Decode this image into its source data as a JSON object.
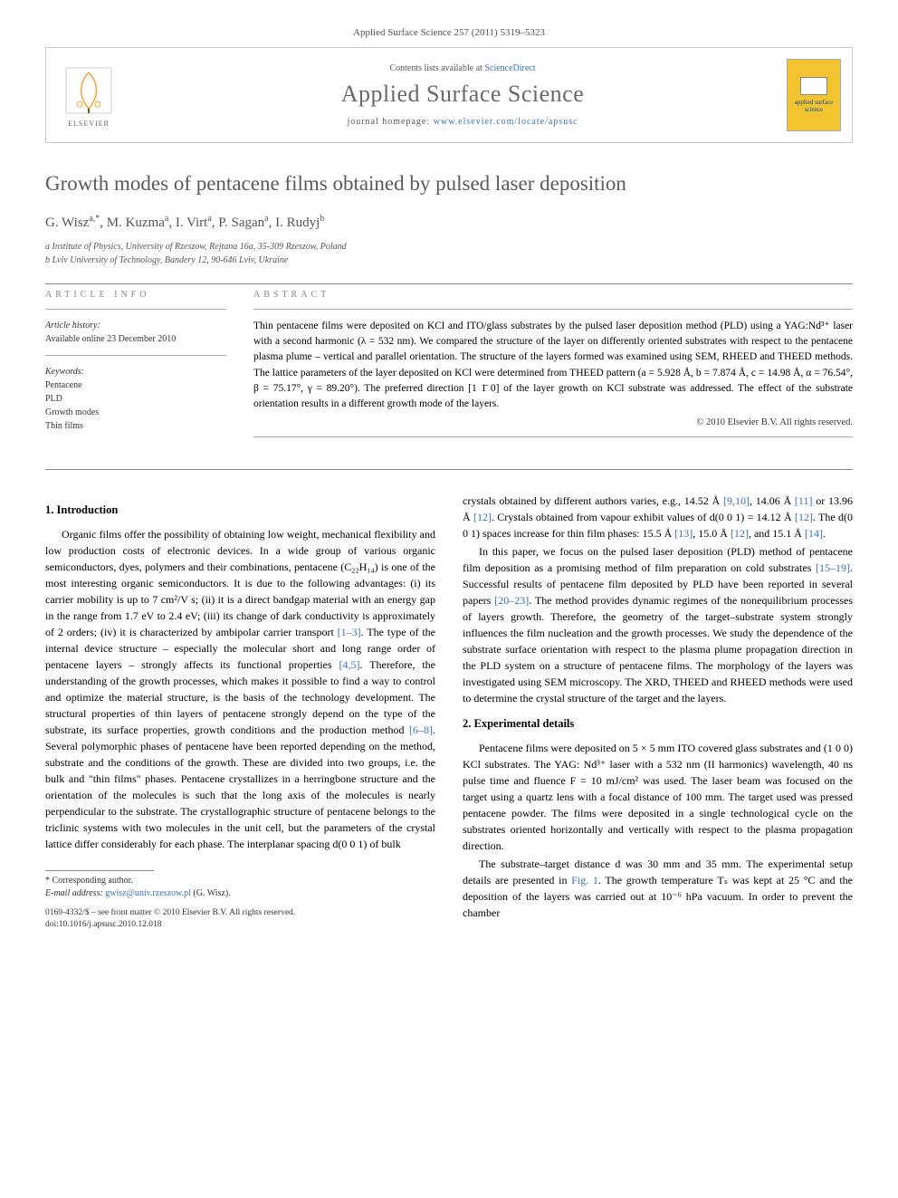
{
  "top_reference": "Applied Surface Science 257 (2011) 5319–5323",
  "banner": {
    "contents_prefix": "Contents lists available at ",
    "contents_link": "ScienceDirect",
    "journal_name": "Applied Surface Science",
    "homepage_prefix": "journal homepage: ",
    "homepage_url": "www.elsevier.com/locate/apsusc",
    "publisher_name": "ELSEVIER",
    "cover_label": "applied surface science"
  },
  "article": {
    "title": "Growth modes of pentacene films obtained by pulsed laser deposition",
    "authors_html": "G. Wisz<sup>a,*</sup>, M. Kuzma<sup>a</sup>, I. Virt<sup>a</sup>, P. Sagan<sup>a</sup>, I. Rudyj<sup>b</sup>",
    "affiliations": [
      "a Institute of Physics, University of Rzeszow, Rejtana 16a, 35-309 Rzeszow, Poland",
      "b Lviv University of Technology, Bandery 12, 90-646 Lviv, Ukraine"
    ]
  },
  "info": {
    "header": "ARTICLE INFO",
    "history_label": "Article history:",
    "history_value": "Available online 23 December 2010",
    "keywords_label": "Keywords:",
    "keywords": [
      "Pentacene",
      "PLD",
      "Growth modes",
      "Thin films"
    ]
  },
  "abstract": {
    "header": "ABSTRACT",
    "text": "Thin pentacene films were deposited on KCl and ITO/glass substrates by the pulsed laser deposition method (PLD) using a YAG:Nd³⁺ laser with a second harmonic (λ = 532 nm). We compared the structure of the layer on differently oriented substrates with respect to the pentacene plasma plume – vertical and parallel orientation. The structure of the layers formed was examined using SEM, RHEED and THEED methods. The lattice parameters of the layer deposited on KCl were determined from THEED pattern (a = 5.928 Å, b = 7.874 Å, c = 14.98 Å, α = 76.54°, β = 75.17°, γ = 89.20°). The preferred direction [1 1̄ 0] of the layer growth on KCl substrate was addressed. The effect of the substrate orientation results in a different growth mode of the layers.",
    "copyright": "© 2010 Elsevier B.V. All rights reserved."
  },
  "sections": {
    "s1_heading": "1. Introduction",
    "s1_p1": "Organic films offer the possibility of obtaining low weight, mechanical flexibility and low production costs of electronic devices. In a wide group of various organic semiconductors, dyes, polymers and their combinations, pentacene (C₂₂H₁₄) is one of the most interesting organic semiconductors. It is due to the following advantages: (i) its carrier mobility is up to 7 cm²/V s; (ii) it is a direct bandgap material with an energy gap in the range from 1.7 eV to 2.4 eV; (iii) its change of dark conductivity is approximately of 2 orders; (iv) it is characterized by ambipolar carrier transport ",
    "s1_p1_ref1": "[1–3]",
    "s1_p1b": ". The type of the internal device structure – especially the molecular short and long range order of pentacene layers – strongly affects its functional properties ",
    "s1_p1_ref2": "[4,5]",
    "s1_p1c": ". Therefore, the understanding of the growth processes, which makes it possible to find a way to control and optimize the material structure, is the basis of the technology development. The structural properties of thin layers of pentacene strongly depend on the type of the substrate, its surface properties, growth conditions and the production method ",
    "s1_p1_ref3": "[6–8]",
    "s1_p1d": ". Several polymorphic phases of pentacene have been reported depending on the method, substrate and the conditions of the growth. These are divided into two groups, i.e. the bulk and \"thin films\" phases. Pentacene crystallizes in a herringbone structure and the orientation of the molecules is such that the long axis of the molecules is nearly perpendicular to the substrate. The crystallographic structure of pentacene belongs to the triclinic systems with two molecules in the unit cell, but the parameters of the crystal lattice differ considerably for each phase. The interplanar spacing d(0 0 1) of bulk",
    "s1_p2a": "crystals obtained by different authors varies, e.g., 14.52 Å ",
    "s1_p2_ref1": "[9,10]",
    "s1_p2b": ", 14.06 Å ",
    "s1_p2_ref2": "[11]",
    "s1_p2c": " or 13.96 Å ",
    "s1_p2_ref3": "[12]",
    "s1_p2d": ". Crystals obtained from vapour exhibit values of d(0 0 1) = 14.12 Å ",
    "s1_p2_ref4": "[12]",
    "s1_p2e": ". The d(0 0 1) spaces increase for thin film phases: 15.5 Å ",
    "s1_p2_ref5": "[13]",
    "s1_p2f": ", 15.0 Å ",
    "s1_p2_ref6": "[12]",
    "s1_p2g": ", and 15.1 Å ",
    "s1_p2_ref7": "[14]",
    "s1_p2h": ".",
    "s1_p3a": "In this paper, we focus on the pulsed laser deposition (PLD) method of pentacene film deposition as a promising method of film preparation on cold substrates ",
    "s1_p3_ref1": "[15–19]",
    "s1_p3b": ". Successful results of pentacene film deposited by PLD have been reported in several papers ",
    "s1_p3_ref2": "[20–23]",
    "s1_p3c": ". The method provides dynamic regimes of the nonequilibrium processes of layers growth. Therefore, the geometry of the target–substrate system strongly influences the film nucleation and the growth processes. We study the dependence of the substrate surface orientation with respect to the plasma plume propagation direction in the PLD system on a structure of pentacene films. The morphology of the layers was investigated using SEM microscopy. The XRD, THEED and RHEED methods were used to determine the crystal structure of the target and the layers.",
    "s2_heading": "2. Experimental details",
    "s2_p1": "Pentacene films were deposited on 5 × 5 mm ITO covered glass substrates and (1 0 0) KCl substrates. The YAG: Nd³⁺ laser with a 532 nm (II harmonics) wavelength, 40 ns pulse time and fluence F = 10 mJ/cm² was used. The laser beam was focused on the target using a quartz lens with a focal distance of 100 mm. The target used was pressed pentacene powder. The films were deposited in a single technological cycle on the substrates oriented horizontally and vertically with respect to the plasma propagation direction.",
    "s2_p2a": "The substrate–target distance d was 30 mm and 35 mm. The experimental setup details are presented in ",
    "s2_p2_ref1": "Fig. 1",
    "s2_p2b": ". The growth temperature Tₛ was kept at 25 °C and the deposition of the layers was carried out at 10⁻⁶ hPa vacuum. In order to prevent the chamber"
  },
  "footer": {
    "corr_label": "* Corresponding author.",
    "email_label": "E-mail address:",
    "email": "gwisz@univ.rzeszow.pl",
    "email_name": "(G. Wisz).",
    "issn_line": "0169-4332/$ – see front matter © 2010 Elsevier B.V. All rights reserved.",
    "doi_line": "doi:10.1016/j.apsusc.2010.12.018"
  },
  "colors": {
    "link": "#3a6fb7",
    "heading_gray": "#5a5a5a",
    "banner_cover": "#f4c430"
  }
}
